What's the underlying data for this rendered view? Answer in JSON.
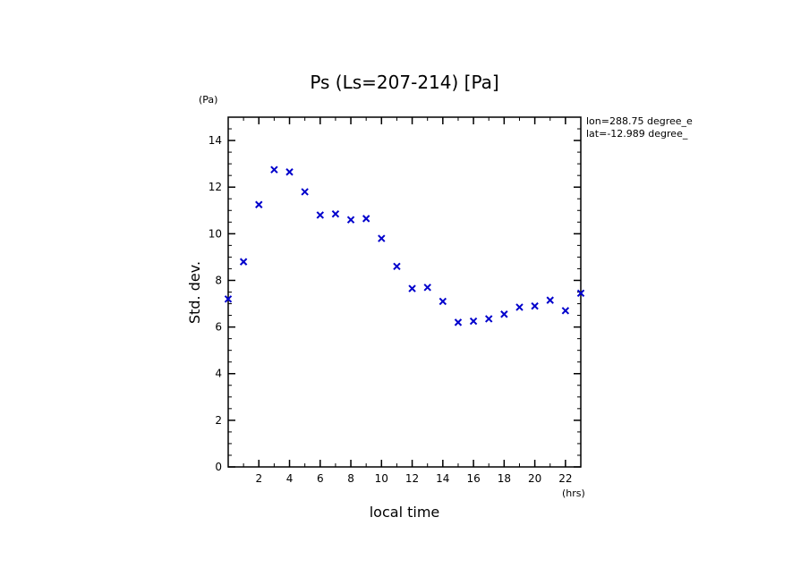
{
  "chart_data": {
    "type": "scatter",
    "title": "Ps (Ls=207-214) [Pa]",
    "xlabel": "local time",
    "ylabel": "Std. dev.",
    "x_unit": "(hrs)",
    "y_unit": "(Pa)",
    "xlim": [
      0,
      23
    ],
    "ylim": [
      0,
      15
    ],
    "x_ticks": [
      2,
      4,
      6,
      8,
      10,
      12,
      14,
      16,
      18,
      20,
      22
    ],
    "x_tick_labels": [
      "2",
      "4",
      "6",
      "8",
      "10",
      "12",
      "14",
      "16",
      "18",
      "20",
      "22"
    ],
    "y_ticks": [
      0,
      2,
      4,
      6,
      8,
      10,
      12,
      14
    ],
    "y_tick_labels": [
      "0",
      "2",
      "4",
      "6",
      "8",
      "10",
      "12",
      "14"
    ],
    "marker": "x",
    "marker_color": "#0000cc",
    "annotations": [
      "lon=288.75 degree_e",
      "lat=-12.989 degree_"
    ],
    "series": [
      {
        "x": [
          0,
          1,
          2,
          3,
          4,
          5,
          6,
          7,
          8,
          9,
          10,
          11,
          12,
          13,
          14,
          15,
          16,
          17,
          18,
          19,
          20,
          21,
          22,
          23
        ],
        "y": [
          7.2,
          8.8,
          11.25,
          12.75,
          12.65,
          11.8,
          10.8,
          10.85,
          10.6,
          10.65,
          9.8,
          8.6,
          7.65,
          7.7,
          7.1,
          6.2,
          6.25,
          6.35,
          6.55,
          6.85,
          6.9,
          7.15,
          6.7,
          7.45
        ]
      }
    ]
  }
}
